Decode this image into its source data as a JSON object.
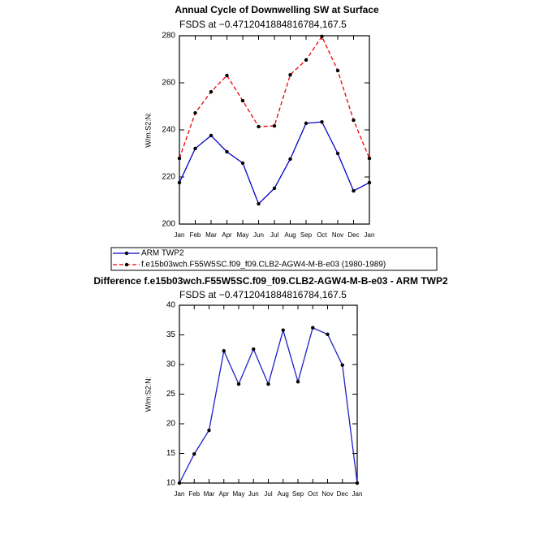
{
  "chart_data": [
    {
      "type": "line",
      "title": "Annual Cycle of Downwelling SW at Surface",
      "subtitle": "FSDS at −0.4712041884816784,167.5",
      "y_label": "W/m:S2:N:",
      "categories": [
        "Jan",
        "Feb",
        "Mar",
        "Apr",
        "May",
        "Jun",
        "Jul",
        "Aug",
        "Sep",
        "Oct",
        "Nov",
        "Dec",
        "Jan"
      ],
      "series": [
        {
          "name": "ARM TWP2",
          "color": "#0000cc",
          "dash": false,
          "values": [
            217.6,
            232.1,
            237.6,
            230.7,
            225.9,
            208.6,
            215.2,
            227.6,
            242.8,
            243.4,
            230,
            214.1,
            217.6
          ]
        },
        {
          "name": "f.e15b03wch.F55W5SC.f09_f09.CLB2-AGW4-M-B-e03 (1980-1989)",
          "color": "#ee0000",
          "dash": true,
          "values": [
            227.9,
            247.2,
            256.2,
            263.1,
            252.4,
            241.4,
            241.7,
            263.4,
            269.7,
            279.7,
            265.2,
            244.1,
            227.9
          ]
        }
      ],
      "ylim": [
        200,
        280
      ],
      "yticks": [
        200,
        220,
        240,
        260,
        280
      ],
      "legend": "below"
    },
    {
      "type": "line",
      "title": "Difference f.e15b03wch.F55W5SC.f09_f09.CLB2-AGW4-M-B-e03 - ARM TWP2",
      "subtitle": "FSDS at −0.4712041884816784,167.5",
      "y_label": "W/m:S2:N:",
      "categories": [
        "Jan",
        "Feb",
        "Mar",
        "Apr",
        "May",
        "Jun",
        "Jul",
        "Aug",
        "Sep",
        "Oct",
        "Nov",
        "Dec",
        "Jan"
      ],
      "series": [
        {
          "color": "#2020cc",
          "dash": false,
          "values": [
            10,
            14.9,
            18.9,
            32.3,
            26.7,
            32.6,
            26.7,
            35.8,
            27.1,
            36.2,
            35.1,
            29.9,
            10
          ]
        }
      ],
      "ylim": [
        10,
        40
      ],
      "yticks": [
        10,
        15,
        20,
        25,
        30,
        35,
        40
      ]
    }
  ]
}
